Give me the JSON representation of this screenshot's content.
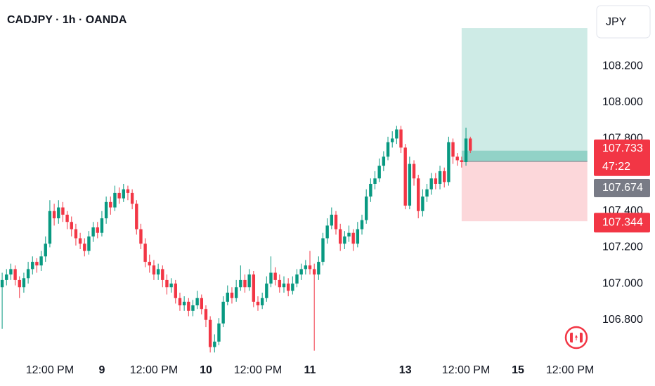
{
  "chart_data": {
    "type": "candlestick",
    "title": "CADJPY · 1h · OANDA",
    "currency": "JPY",
    "countdown": "47:22",
    "up_color": "#089981",
    "down_color": "#f23645",
    "open": [
      106.98,
      107.02,
      107.05,
      107.08,
      107.02,
      106.98,
      107.03,
      107.08,
      107.12,
      107.1,
      107.15,
      107.22,
      107.4,
      107.36,
      107.42,
      107.38,
      107.34,
      107.3,
      107.25,
      107.22,
      107.18,
      107.26,
      107.31,
      107.28,
      107.36,
      107.45,
      107.42,
      107.5,
      107.47,
      107.52,
      107.5,
      107.44,
      107.3,
      107.22,
      107.12,
      107.1,
      107.05,
      107.08,
      107.02,
      106.98,
      107.0,
      106.92,
      106.88,
      106.9,
      106.85,
      106.88,
      106.92,
      106.86,
      106.8,
      106.65,
      106.68,
      106.78,
      106.9,
      106.95,
      106.92,
      106.98,
      107.02,
      106.98,
      107.05,
      106.9,
      106.88,
      106.92,
      107.0,
      107.06,
      107.02,
      106.98,
      107.0,
      106.96,
      107.0,
      107.05,
      107.08,
      107.1,
      107.08,
      107.05,
      107.12,
      107.25,
      107.32,
      107.38,
      107.3,
      107.22,
      107.26,
      107.28,
      107.22,
      107.3,
      107.35,
      107.48,
      107.55,
      107.58,
      107.65,
      107.7,
      107.78,
      107.8,
      107.85,
      107.75,
      107.43,
      107.66,
      107.58,
      107.4,
      107.48,
      107.52,
      107.58,
      107.55,
      107.62,
      107.56,
      107.78,
      107.7,
      107.68,
      107.67,
      107.8
    ],
    "high": [
      107.06,
      107.08,
      107.11,
      107.1,
      107.04,
      107.06,
      107.12,
      107.15,
      107.14,
      107.18,
      107.26,
      107.46,
      107.44,
      107.46,
      107.45,
      107.4,
      107.37,
      107.33,
      107.28,
      107.25,
      107.29,
      107.34,
      107.34,
      107.4,
      107.48,
      107.48,
      107.54,
      107.53,
      107.55,
      107.54,
      107.52,
      107.46,
      107.33,
      107.25,
      107.16,
      107.13,
      107.11,
      107.1,
      107.05,
      107.03,
      107.02,
      106.95,
      106.93,
      106.92,
      106.91,
      106.96,
      106.94,
      106.88,
      106.82,
      106.72,
      106.81,
      106.93,
      106.99,
      106.98,
      107.02,
      107.1,
      107.05,
      107.08,
      107.07,
      106.93,
      106.95,
      107.04,
      107.15,
      107.09,
      107.05,
      107.04,
      107.03,
      107.04,
      107.08,
      107.11,
      107.13,
      107.18,
      107.11,
      107.15,
      107.28,
      107.36,
      107.42,
      107.4,
      107.33,
      107.29,
      107.32,
      107.3,
      107.34,
      107.38,
      107.52,
      107.58,
      107.62,
      107.69,
      107.73,
      107.81,
      107.84,
      107.87,
      107.87,
      107.77,
      107.7,
      107.68,
      107.6,
      107.52,
      107.55,
      107.61,
      107.61,
      107.65,
      107.64,
      107.81,
      107.8,
      107.72,
      107.7,
      107.86,
      107.81
    ],
    "low": [
      106.75,
      106.99,
      107.02,
      106.99,
      106.92,
      106.95,
      107.0,
      107.05,
      107.06,
      107.07,
      107.12,
      107.2,
      107.32,
      107.33,
      107.34,
      107.3,
      107.26,
      107.21,
      107.19,
      107.15,
      107.16,
      107.23,
      107.25,
      107.26,
      107.33,
      107.38,
      107.4,
      107.44,
      107.45,
      107.46,
      107.41,
      107.27,
      107.19,
      107.09,
      107.06,
      107.02,
      107.02,
      106.98,
      106.94,
      106.95,
      106.89,
      106.85,
      106.85,
      106.82,
      106.82,
      106.86,
      106.83,
      106.76,
      106.62,
      106.62,
      106.66,
      106.76,
      106.88,
      106.89,
      106.9,
      106.96,
      106.95,
      106.96,
      106.87,
      106.85,
      106.86,
      106.9,
      106.98,
      106.99,
      106.95,
      106.95,
      106.93,
      106.94,
      106.98,
      107.02,
      107.05,
      107.05,
      106.63,
      107.02,
      107.1,
      107.22,
      107.3,
      107.27,
      107.18,
      107.19,
      107.23,
      107.18,
      107.2,
      107.27,
      107.33,
      107.45,
      107.52,
      107.56,
      107.62,
      107.68,
      107.75,
      107.77,
      107.72,
      107.41,
      107.41,
      107.54,
      107.36,
      107.37,
      107.45,
      107.49,
      107.52,
      107.52,
      107.53,
      107.54,
      107.66,
      107.65,
      107.64,
      107.65,
      107.72
    ],
    "close": [
      107.02,
      107.05,
      107.08,
      107.02,
      106.98,
      107.03,
      107.08,
      107.12,
      107.1,
      107.15,
      107.22,
      107.4,
      107.36,
      107.42,
      107.38,
      107.34,
      107.3,
      107.25,
      107.22,
      107.18,
      107.26,
      107.31,
      107.28,
      107.36,
      107.45,
      107.42,
      107.5,
      107.47,
      107.52,
      107.5,
      107.44,
      107.3,
      107.22,
      107.12,
      107.1,
      107.05,
      107.08,
      107.02,
      106.98,
      107.0,
      106.92,
      106.88,
      106.9,
      106.85,
      106.88,
      106.92,
      106.86,
      106.8,
      106.65,
      106.68,
      106.78,
      106.9,
      106.95,
      106.92,
      106.98,
      107.02,
      106.98,
      107.05,
      106.9,
      106.88,
      106.92,
      107.0,
      107.06,
      107.02,
      106.98,
      107.0,
      106.96,
      107.0,
      107.05,
      107.08,
      107.1,
      107.08,
      107.05,
      107.12,
      107.25,
      107.32,
      107.38,
      107.3,
      107.22,
      107.26,
      107.28,
      107.22,
      107.3,
      107.35,
      107.48,
      107.55,
      107.58,
      107.65,
      107.7,
      107.78,
      107.8,
      107.85,
      107.75,
      107.43,
      107.66,
      107.58,
      107.4,
      107.48,
      107.52,
      107.58,
      107.55,
      107.62,
      107.56,
      107.78,
      107.7,
      107.68,
      107.67,
      107.8,
      107.733
    ],
    "position": {
      "x_range": [
        106,
        135
      ],
      "entry": 107.674,
      "target": 108.409,
      "stop": 107.344
    },
    "xlim": [
      -0.5,
      136.5
    ],
    "xticks": [
      {
        "value": 11,
        "label": "12:00 PM"
      },
      {
        "value": 23,
        "label": "9"
      },
      {
        "value": 35,
        "label": "12:00 PM"
      },
      {
        "value": 47,
        "label": "10"
      },
      {
        "value": 59,
        "label": "12:00 PM"
      },
      {
        "value": 71,
        "label": "11"
      },
      {
        "value": 93,
        "label": "13"
      },
      {
        "value": 107,
        "label": "12:00 PM"
      },
      {
        "value": 119,
        "label": "15"
      },
      {
        "value": 131,
        "label": "12:00 PM"
      }
    ],
    "ylim": [
      106.59,
      108.564
    ],
    "yticks": [
      {
        "value": 106.8,
        "label": "106.800"
      },
      {
        "value": 107.0,
        "label": "107.000"
      },
      {
        "value": 107.2,
        "label": "107.200"
      },
      {
        "value": 107.4,
        "label": "107.400"
      },
      {
        "value": 107.8,
        "label": "107.800"
      },
      {
        "value": 108.0,
        "label": "108.000"
      },
      {
        "value": 108.2,
        "label": "108.200"
      }
    ]
  }
}
